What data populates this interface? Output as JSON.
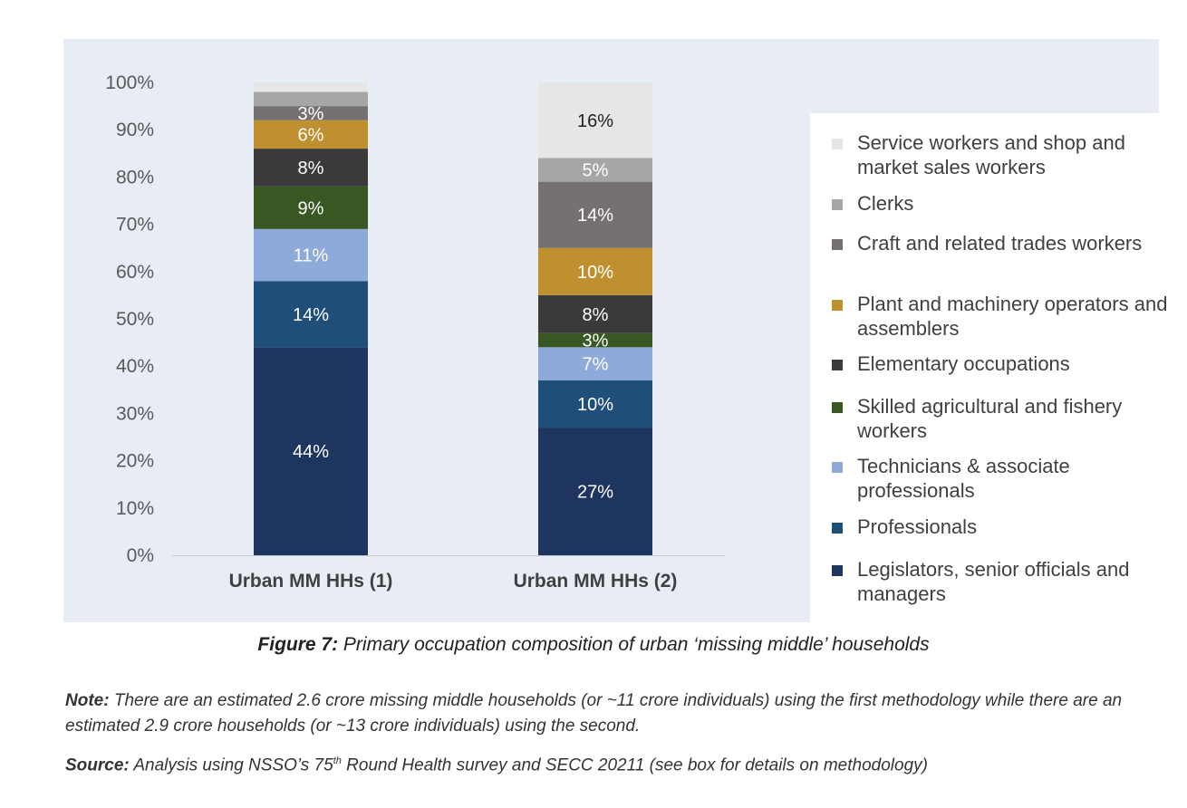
{
  "chart_data": {
    "type": "bar",
    "stacked": true,
    "categories": [
      "Urban MM HHs (1)",
      "Urban MM HHs (2)"
    ],
    "ylim": [
      0,
      100
    ],
    "yticks": [
      "0%",
      "10%",
      "20%",
      "30%",
      "40%",
      "50%",
      "60%",
      "70%",
      "80%",
      "90%",
      "100%"
    ],
    "grid": false,
    "legend_position": "right",
    "series": [
      {
        "name": "Legislators, senior officials and managers",
        "color": "#1d355f",
        "values": [
          44,
          27
        ],
        "labels": [
          "44%",
          "27%"
        ]
      },
      {
        "name": "Professionals",
        "color": "#1f4e79",
        "values": [
          14,
          10
        ],
        "labels": [
          "14%",
          "10%"
        ]
      },
      {
        "name": "Technicians & associate professionals",
        "color": "#8eaadb",
        "values": [
          11,
          7
        ],
        "labels": [
          "11%",
          "7%"
        ]
      },
      {
        "name": "Skilled agricultural and fishery workers",
        "color": "#385723",
        "values": [
          9,
          3
        ],
        "labels": [
          "9%",
          "3%"
        ]
      },
      {
        "name": "Elementary occupations",
        "color": "#3a3a3a",
        "values": [
          8,
          8
        ],
        "labels": [
          "8%",
          "8%"
        ]
      },
      {
        "name": "Plant and machinery operators and assemblers",
        "color": "#bf9030",
        "values": [
          6,
          10
        ],
        "labels": [
          "6%",
          "10%"
        ]
      },
      {
        "name": "Craft and related trades workers",
        "color": "#767171",
        "values": [
          3,
          14
        ],
        "labels": [
          "3%",
          "14%"
        ]
      },
      {
        "name": "Clerks",
        "color": "#a6a6a6",
        "values": [
          3,
          5
        ],
        "labels": [
          "",
          "5%"
        ]
      },
      {
        "name": "Service workers and shop and market sales workers",
        "color": "#e7e6e6",
        "values": [
          2,
          16
        ],
        "labels": [
          "",
          "16%"
        ]
      }
    ]
  },
  "caption": {
    "label": "Figure 7:",
    "text": " Primary occupation composition of urban ‘missing middle’ households"
  },
  "note": {
    "label": "Note:",
    "text": " There are an estimated 2.6 crore missing middle households (or ~11 crore individuals) using the first methodology while there are an estimated 2.9 crore households (or ~13 crore individuals) using the second."
  },
  "source": {
    "label": "Source:",
    "text_before": " Analysis using NSSO’s 75",
    "sup": "th",
    "text_after": " Round Health survey and SECC 20211 (see box for details on methodology)"
  }
}
